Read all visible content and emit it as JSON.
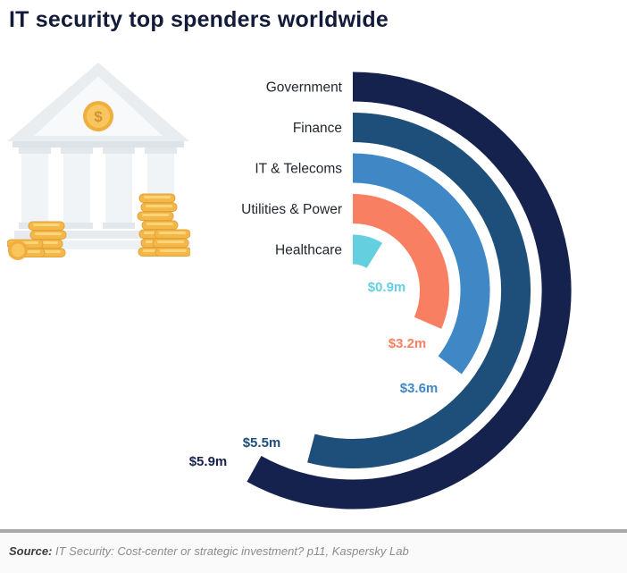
{
  "title": "IT security top spenders worldwide",
  "footer": {
    "source_label": "Source:",
    "source_text": " IT Security: Cost-center or strategic investment? p11, Kaspersky Lab"
  },
  "illustration": {
    "name": "bank-with-gold-coins",
    "dollar_symbol": "$"
  },
  "chart_data": {
    "type": "bar",
    "variant": "radial",
    "title": "IT security top spenders worldwide",
    "unit": "USD millions",
    "categories": [
      "Government",
      "Finance",
      "IT & Telecoms",
      "Utilities & Power",
      "Healthcare"
    ],
    "values": [
      5.9,
      5.5,
      3.6,
      3.2,
      0.9
    ],
    "value_labels": [
      "$5.9m",
      "$5.5m",
      "$3.6m",
      "$3.2m",
      "$0.9m"
    ],
    "colors": [
      "#15224e",
      "#1e4e7a",
      "#3f88c5",
      "#f97f63",
      "#63cfdf"
    ],
    "value_range": [
      0,
      5.9
    ],
    "max_sweep_deg": 209,
    "grid": false,
    "legend_position": "none"
  }
}
